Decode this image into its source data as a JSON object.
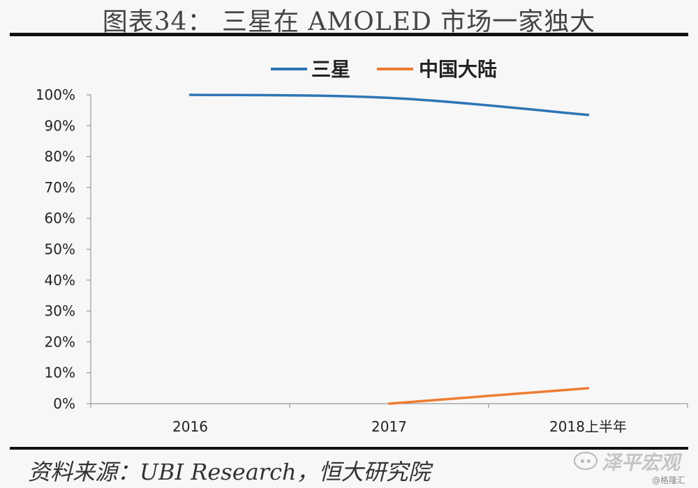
{
  "title": "图表34： 三星在 AMOLED 市场一家独大",
  "source": "资料来源：UBI Research，恒大研究院",
  "watermark": {
    "name": "泽平宏观",
    "handle": "@格隆汇"
  },
  "colors": {
    "samsung": "#2e75b6",
    "china": "#ed7d31",
    "axis": "#999999",
    "rule": "#111111"
  },
  "chart_data": {
    "type": "line",
    "categories": [
      "2016",
      "2017",
      "2018上半年"
    ],
    "series": [
      {
        "name": "三星",
        "values": [
          100,
          99,
          93.5
        ]
      },
      {
        "name": "中国大陆",
        "values": [
          null,
          0,
          5
        ]
      }
    ],
    "y_ticks": [
      "0%",
      "10%",
      "20%",
      "30%",
      "40%",
      "50%",
      "60%",
      "70%",
      "80%",
      "90%",
      "100%"
    ],
    "ylim": [
      0,
      100
    ],
    "legend": "top-center",
    "grid": false
  }
}
